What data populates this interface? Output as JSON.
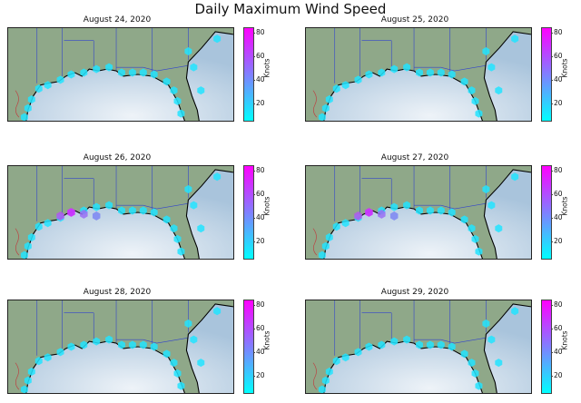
{
  "title": "Daily Maximum Wind Speed",
  "colorbar": {
    "label": "Knots",
    "ticks": [
      "80",
      "60",
      "40",
      "20"
    ],
    "min_color": "#00ffff",
    "max_color": "#ff00ff"
  },
  "colors": {
    "land": "#8fa889",
    "water_deep": "#a9c4dc",
    "water_light": "#eef3f8",
    "coastline": "#000000",
    "borders": "#3344cc"
  },
  "panels": [
    {
      "date": "August 24, 2020"
    },
    {
      "date": "August 25, 2020"
    },
    {
      "date": "August 26, 2020",
      "peak": "high"
    },
    {
      "date": "August 27, 2020",
      "peak": "high"
    },
    {
      "date": "August 28, 2020"
    },
    {
      "date": "August 29, 2020"
    }
  ]
}
